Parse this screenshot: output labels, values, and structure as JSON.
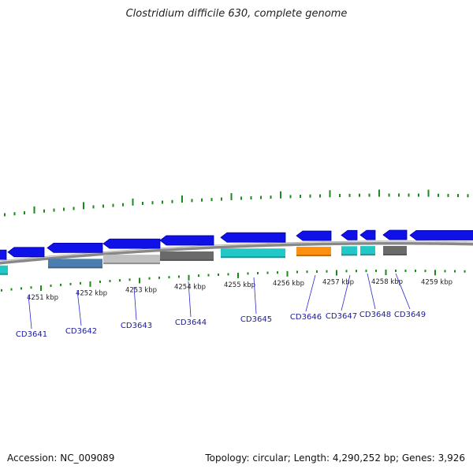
{
  "title": "Clostridium difficile 630, complete genome",
  "footer": {
    "accession": "Accession: NC_009089",
    "summary": "Topology: circular; Length: 4,290,252 bp; Genes: 3,926"
  },
  "colors": {
    "forward": "#1010e8",
    "reverse_cyan": "#20c8c8",
    "orange": "#ff9010",
    "steel_blue": "#4a7db0",
    "light_gray": "#c0c0c0",
    "dark_gray": "#6a6a6a",
    "ticks": "#1a8a1a",
    "backbone": "#888888",
    "label_blue": "#1a1aa0"
  },
  "kbp_labels": [
    "4251 kbp",
    "4252 kbp",
    "4253 kbp",
    "4254 kbp",
    "4255 kbp",
    "4256 kbp",
    "4257 kbp",
    "4258 kbp",
    "4259 kbp"
  ],
  "gene_labels": [
    "CD3641",
    "CD3642",
    "CD3643",
    "CD3644",
    "CD3645",
    "CD3646",
    "CD3647",
    "CD3648",
    "CD3649"
  ]
}
